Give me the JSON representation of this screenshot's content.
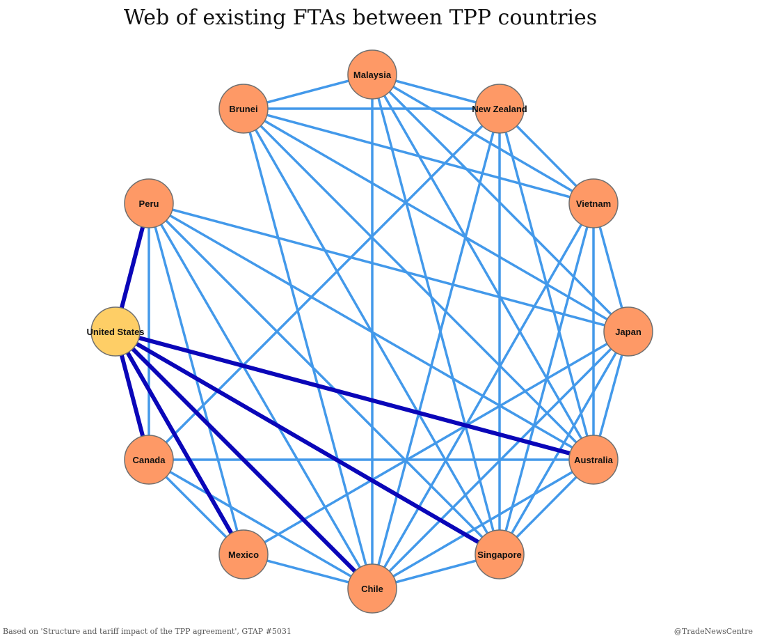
{
  "title": "Web of existing FTAs between TPP countries",
  "source": "Based on 'Structure and tariff impact of the TPP agreement', GTAP #5031",
  "credit": "@TradeNewsCentre",
  "colors": {
    "node": "#fe9966",
    "highlight_node": "#fece66",
    "node_stroke": "#6f6f6f",
    "edge": "#4399ea",
    "us_edge": "#0a06b8"
  },
  "nodes": [
    {
      "id": "malaysia",
      "label": "Malaysia"
    },
    {
      "id": "newzealand",
      "label": "New Zealand"
    },
    {
      "id": "vietnam",
      "label": "Vietnam"
    },
    {
      "id": "japan",
      "label": "Japan"
    },
    {
      "id": "australia",
      "label": "Australia"
    },
    {
      "id": "singapore",
      "label": "Singapore"
    },
    {
      "id": "chile",
      "label": "Chile"
    },
    {
      "id": "mexico",
      "label": "Mexico"
    },
    {
      "id": "canada",
      "label": "Canada"
    },
    {
      "id": "us",
      "label": "United States",
      "highlight": true
    },
    {
      "id": "peru",
      "label": "Peru"
    },
    {
      "id": "brunei",
      "label": "Brunei"
    }
  ],
  "edges": [
    [
      "malaysia",
      "brunei"
    ],
    [
      "malaysia",
      "newzealand"
    ],
    [
      "malaysia",
      "vietnam"
    ],
    [
      "malaysia",
      "japan"
    ],
    [
      "malaysia",
      "australia"
    ],
    [
      "malaysia",
      "singapore"
    ],
    [
      "malaysia",
      "chile"
    ],
    [
      "brunei",
      "newzealand"
    ],
    [
      "brunei",
      "vietnam"
    ],
    [
      "brunei",
      "japan"
    ],
    [
      "brunei",
      "australia"
    ],
    [
      "brunei",
      "singapore"
    ],
    [
      "brunei",
      "chile"
    ],
    [
      "newzealand",
      "vietnam"
    ],
    [
      "newzealand",
      "australia"
    ],
    [
      "newzealand",
      "singapore"
    ],
    [
      "newzealand",
      "chile"
    ],
    [
      "newzealand",
      "canada"
    ],
    [
      "vietnam",
      "japan"
    ],
    [
      "vietnam",
      "australia"
    ],
    [
      "vietnam",
      "singapore"
    ],
    [
      "vietnam",
      "chile"
    ],
    [
      "japan",
      "peru"
    ],
    [
      "japan",
      "australia"
    ],
    [
      "japan",
      "singapore"
    ],
    [
      "japan",
      "chile"
    ],
    [
      "japan",
      "mexico"
    ],
    [
      "peru",
      "canada"
    ],
    [
      "peru",
      "australia"
    ],
    [
      "peru",
      "singapore"
    ],
    [
      "peru",
      "chile"
    ],
    [
      "peru",
      "mexico"
    ],
    [
      "canada",
      "australia"
    ],
    [
      "canada",
      "mexico"
    ],
    [
      "canada",
      "chile"
    ],
    [
      "mexico",
      "chile"
    ],
    [
      "chile",
      "singapore"
    ],
    [
      "chile",
      "australia"
    ],
    [
      "singapore",
      "australia"
    ],
    [
      "us",
      "peru",
      "us"
    ],
    [
      "us",
      "canada",
      "us"
    ],
    [
      "us",
      "mexico",
      "us"
    ],
    [
      "us",
      "chile",
      "us"
    ],
    [
      "us",
      "singapore",
      "us"
    ],
    [
      "us",
      "australia",
      "us"
    ]
  ]
}
